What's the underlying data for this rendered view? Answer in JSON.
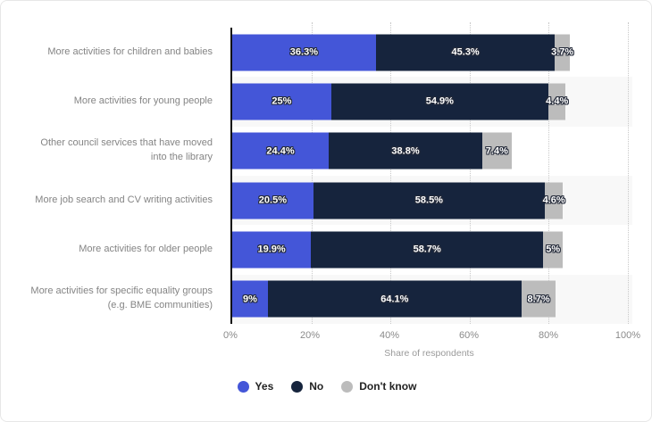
{
  "chart_data": {
    "type": "bar",
    "orientation": "horizontal",
    "stacked": true,
    "categories": [
      "More activities for children and babies",
      "More activities for young people",
      "Other council services that have moved into the library",
      "More job search and CV writing activities",
      "More activities for older people",
      "More activities for specific equality groups (e.g. BME communities)"
    ],
    "series": [
      {
        "name": "Yes",
        "color": "#4456d8",
        "values": [
          36.3,
          25,
          24.4,
          20.5,
          19.9,
          9
        ],
        "labels": [
          "36.3%",
          "25%",
          "24.4%",
          "20.5%",
          "19.9%",
          "9%"
        ]
      },
      {
        "name": "No",
        "color": "#16243d",
        "values": [
          45.3,
          54.9,
          38.8,
          58.5,
          58.7,
          64.1
        ],
        "labels": [
          "45.3%",
          "54.9%",
          "38.8%",
          "58.5%",
          "58.7%",
          "64.1%"
        ]
      },
      {
        "name": "Don't know",
        "color": "#bcbcbc",
        "values": [
          3.7,
          4.4,
          7.4,
          4.6,
          5,
          8.7
        ],
        "labels": [
          "3.7%",
          "4.4%",
          "7.4%",
          "4.6%",
          "5%",
          "8.7%"
        ]
      }
    ],
    "xlabel": "Share of respondents",
    "x_ticks": [
      {
        "value": 0,
        "label": "0%"
      },
      {
        "value": 20,
        "label": "20%"
      },
      {
        "value": 40,
        "label": "40%"
      },
      {
        "value": 60,
        "label": "60%"
      },
      {
        "value": 80,
        "label": "80%"
      },
      {
        "value": 100,
        "label": "100%"
      }
    ],
    "xlim": [
      0,
      100
    ],
    "grid": "dotted-vertical",
    "legend_position": "bottom",
    "colors": {
      "row_stripe": "#f8f8f8",
      "gridline": "#c9c9c9",
      "axis_line": "#0d0d0d",
      "category_label": "#848484",
      "tick_label": "#8a8a8a",
      "axis_title": "#9a9a9a",
      "legend_text": "#222222",
      "value_label": "#ffffff"
    }
  }
}
